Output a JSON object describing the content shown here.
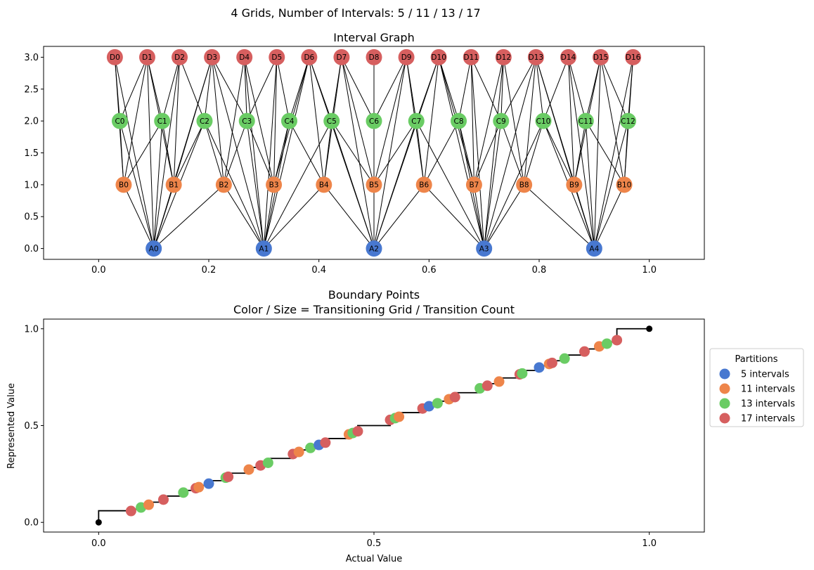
{
  "suptitle": "4 Grids, Number of Intervals: 5 / 11 / 13 / 17",
  "chart_data": [
    {
      "type": "network",
      "title": "Interval Graph",
      "xlim": [
        -0.1,
        1.1
      ],
      "ylim": [
        -0.17,
        3.17
      ],
      "xticks": [
        0.0,
        0.2,
        0.4,
        0.6,
        0.8,
        1.0
      ],
      "xtick_labels": [
        "0.0",
        "0.2",
        "0.4",
        "0.6",
        "0.8",
        "1.0"
      ],
      "yticks": [
        0.0,
        0.5,
        1.0,
        1.5,
        2.0,
        2.5,
        3.0
      ],
      "ytick_labels": [
        "0.0",
        "0.5",
        "1.0",
        "1.5",
        "2.0",
        "2.5",
        "3.0"
      ],
      "levels": [
        {
          "prefix": "A",
          "y": 0,
          "count": 5,
          "color": "#4878d0"
        },
        {
          "prefix": "B",
          "y": 1,
          "count": 11,
          "color": "#ee854a"
        },
        {
          "prefix": "C",
          "y": 2,
          "count": 13,
          "color": "#6acc64"
        },
        {
          "prefix": "D",
          "y": 3,
          "count": 17,
          "color": "#d65f5f"
        }
      ],
      "edge_rule": "edges connect intervals on adjacent-or-any grids whose ranges overlap"
    },
    {
      "type": "scatter",
      "title": "Boundary Points\nColor / Size = Transitioning Grid / Transition Count",
      "title_lines": [
        "Boundary Points",
        "Color / Size = Transitioning Grid / Transition Count"
      ],
      "xlabel": "Actual Value",
      "ylabel": "Represented Value",
      "xlim": [
        -0.1,
        1.1
      ],
      "ylim": [
        -0.05,
        1.05
      ],
      "xticks": [
        0.0,
        0.5,
        1.0
      ],
      "xtick_labels": [
        "0.0",
        "0.5",
        "1.0"
      ],
      "yticks": [
        0.0,
        0.5,
        1.0
      ],
      "ytick_labels": [
        "0.0",
        "0.5",
        "1.0"
      ],
      "grids": [
        5,
        11,
        13,
        17
      ],
      "legend": {
        "title": "Partitions",
        "position": "right",
        "entries": [
          {
            "label": "5 intervals",
            "color": "#4878d0"
          },
          {
            "label": "11 intervals",
            "color": "#ee854a"
          },
          {
            "label": "13 intervals",
            "color": "#6acc64"
          },
          {
            "label": "17 intervals",
            "color": "#d65f5f"
          }
        ]
      },
      "endpoints": [
        [
          0,
          0
        ],
        [
          1,
          1
        ]
      ],
      "step_color": "#000000"
    }
  ]
}
